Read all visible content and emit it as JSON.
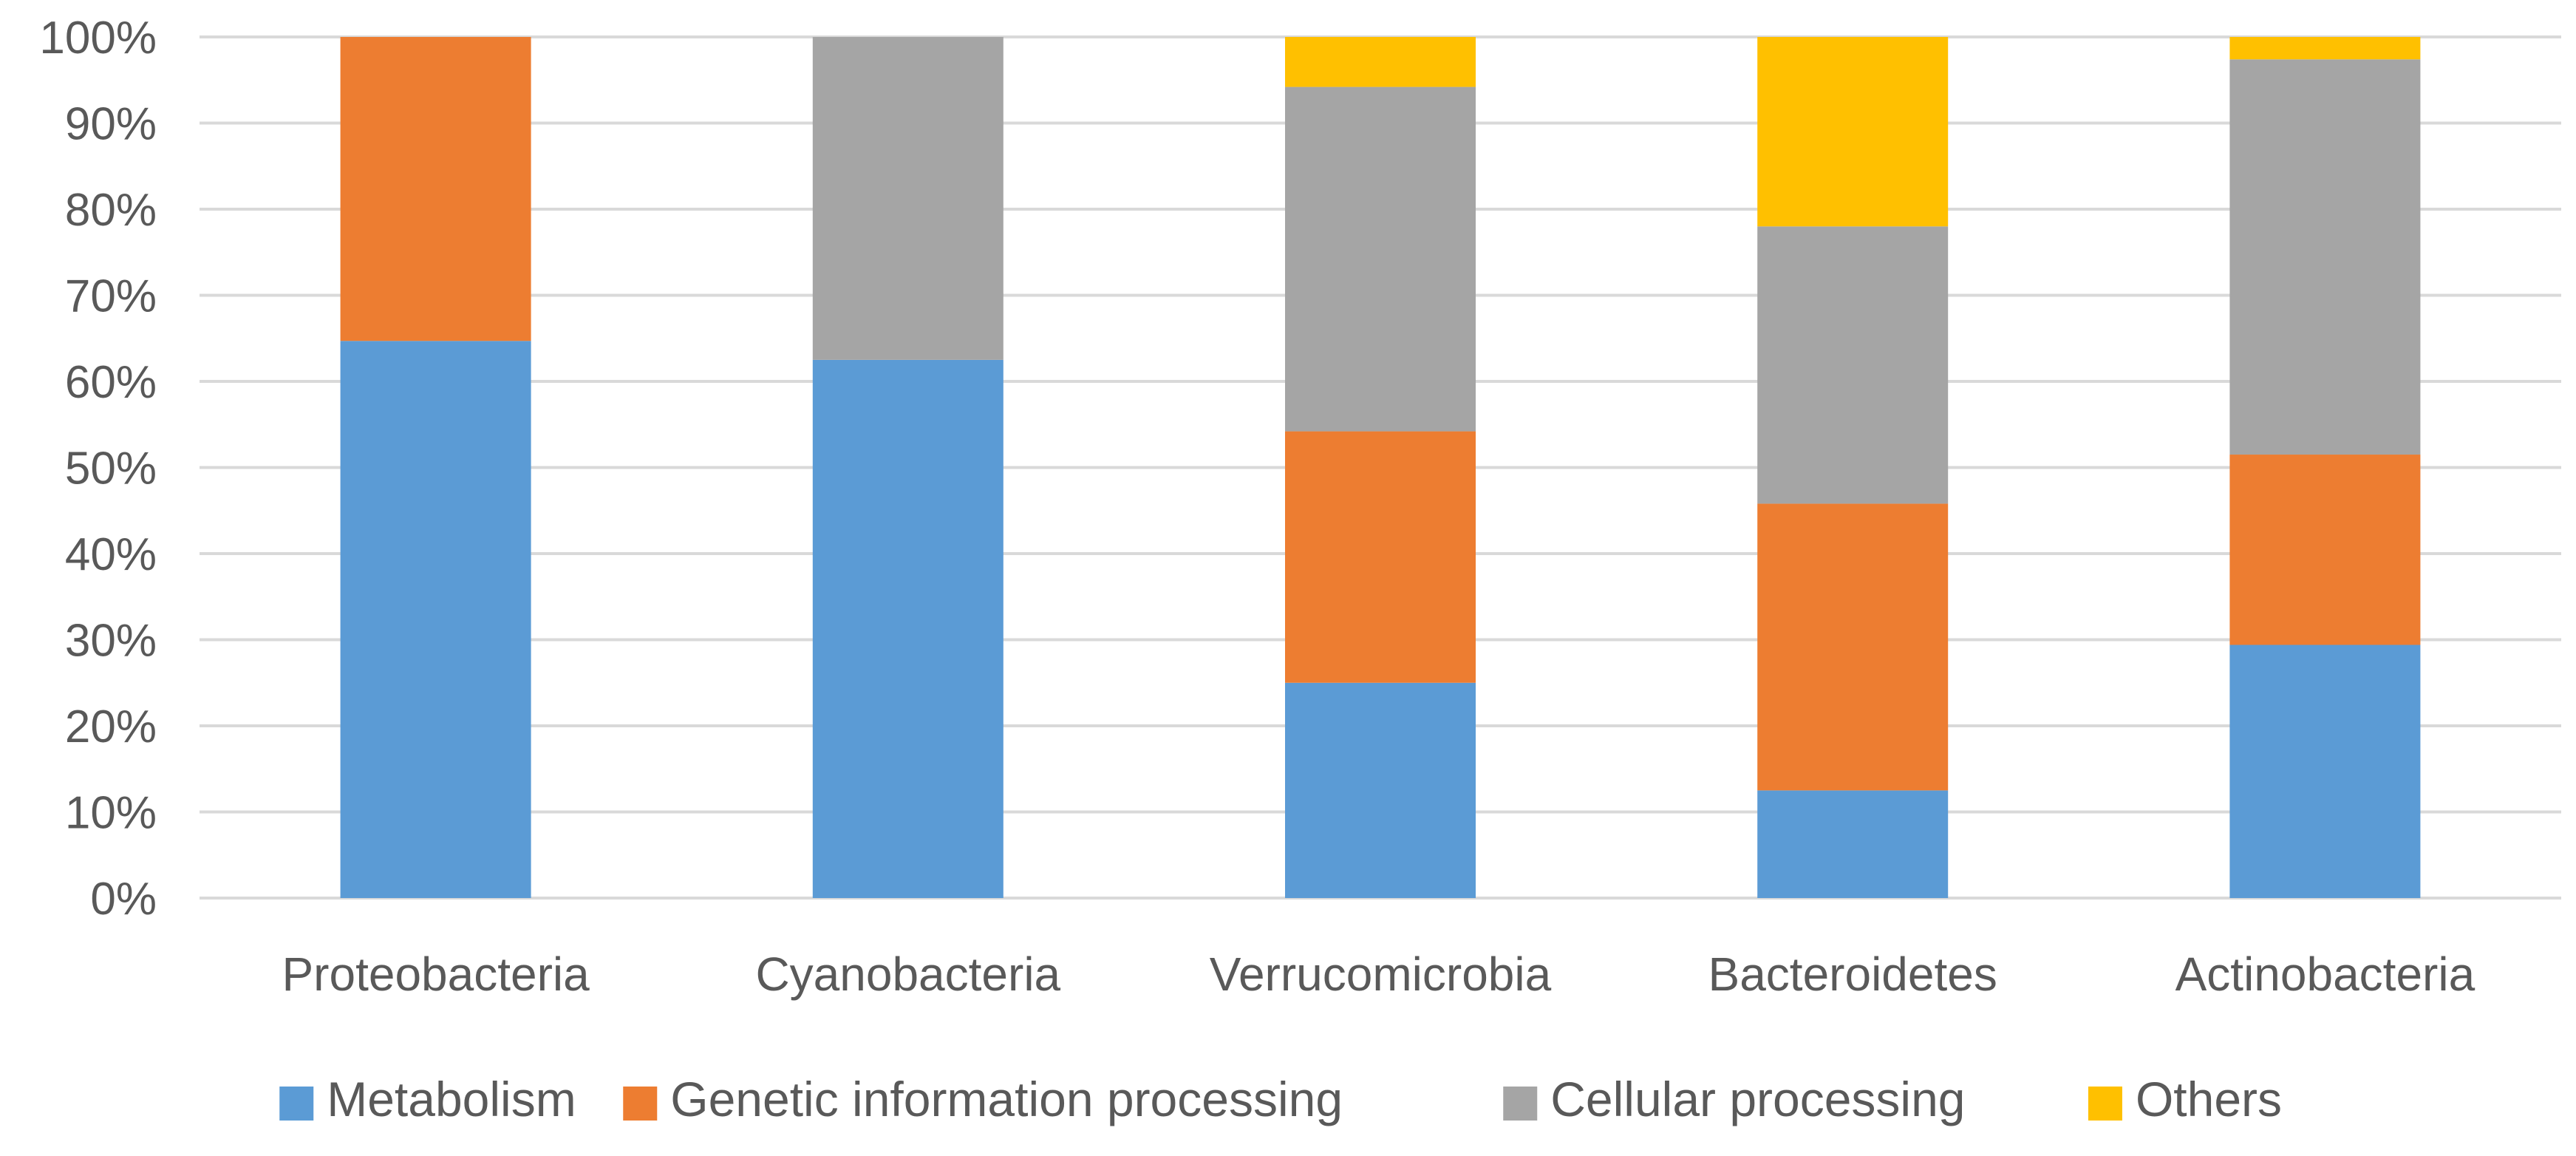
{
  "chart_data": {
    "type": "bar",
    "stacked": true,
    "percent": true,
    "title": "",
    "xlabel": "",
    "ylabel": "",
    "ylim": [
      0,
      100
    ],
    "yticks": [
      "0%",
      "10%",
      "20%",
      "30%",
      "40%",
      "50%",
      "60%",
      "70%",
      "80%",
      "90%",
      "100%"
    ],
    "grid": true,
    "legend_position": "bottom",
    "categories": [
      "Proteobacteria",
      "Cyanobacteria",
      "Verrucomicrobia",
      "Bacteroidetes",
      "Actinobacteria"
    ],
    "series": [
      {
        "name": "Metabolism",
        "color": "#5B9BD5",
        "values": [
          64.7,
          62.5,
          25.0,
          12.5,
          29.4
        ]
      },
      {
        "name": "Genetic information processing",
        "color": "#ED7D31",
        "values": [
          35.3,
          0.0,
          29.2,
          33.3,
          22.1
        ]
      },
      {
        "name": "Cellular processing",
        "color": "#A5A5A5",
        "values": [
          0.0,
          37.5,
          40.0,
          32.2,
          45.9
        ]
      },
      {
        "name": "Others",
        "color": "#FFC000",
        "values": [
          0.0,
          0.0,
          5.8,
          22.0,
          2.6
        ]
      }
    ]
  }
}
